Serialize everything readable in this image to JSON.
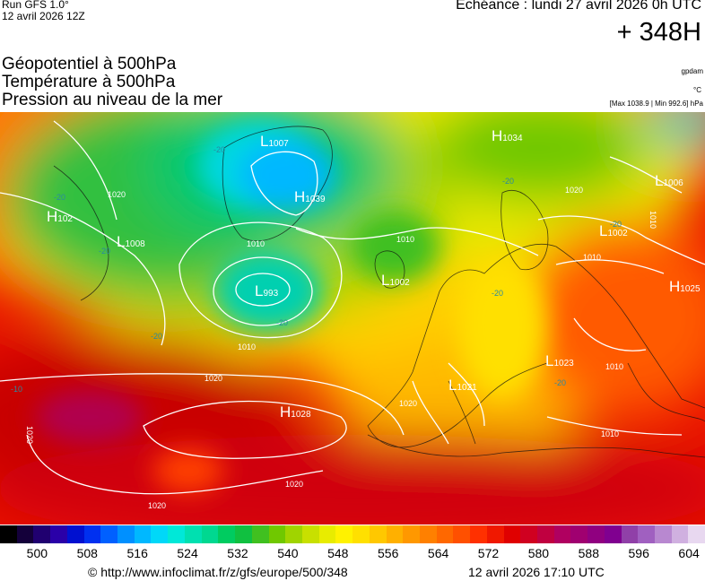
{
  "header": {
    "run": "Run GFS 1.0°",
    "run_date": "12 avril 2026 12Z",
    "echeance": "Echéance : lundi 27 avril 2026 0h UTC",
    "lead": "+ 348H"
  },
  "titles": {
    "geopotential": "Géopotentiel à 500hPa",
    "temperature": "Température à 500hPa",
    "pressure": "Pression au niveau de la mer"
  },
  "units": {
    "geopotential": "gpdam",
    "temperature": "°C",
    "pressure_extremes": "[Max 1038.9 | Min 992.6] hPa"
  },
  "map": {
    "pressure_centers": [
      {
        "type": "H",
        "value": "1039"
      },
      {
        "type": "H",
        "value": "1034"
      },
      {
        "type": "H",
        "value": "102"
      },
      {
        "type": "H",
        "value": "1028"
      },
      {
        "type": "H",
        "value": "1025"
      },
      {
        "type": "L",
        "value": "1007"
      },
      {
        "type": "L",
        "value": "1008"
      },
      {
        "type": "L",
        "value": "993"
      },
      {
        "type": "L",
        "value": "1002"
      },
      {
        "type": "L",
        "value": "1006"
      },
      {
        "type": "L",
        "value": "1002"
      },
      {
        "type": "L",
        "value": "1023"
      },
      {
        "type": "L",
        "value": "1021"
      }
    ],
    "isobar_labels": [
      "1020",
      "1010",
      "1010",
      "1010",
      "1020",
      "1020",
      "1020",
      "1020",
      "1010",
      "1010",
      "1020",
      "1020",
      "1010",
      "1010"
    ],
    "temperature_labels": [
      "-20",
      "-20",
      "-20",
      "-20",
      "-20",
      "-20",
      "-10",
      "-20",
      "-20",
      "-20"
    ]
  },
  "colorbar": {
    "colors": [
      "#000000",
      "#14003a",
      "#200070",
      "#2a00a8",
      "#0010d0",
      "#0030f0",
      "#0060ff",
      "#0090ff",
      "#00b8ff",
      "#00d8f8",
      "#00e8d8",
      "#00e0b0",
      "#00d890",
      "#00cc60",
      "#10c040",
      "#40c020",
      "#70c800",
      "#a0d400",
      "#c8e000",
      "#e8ec00",
      "#fff200",
      "#ffe000",
      "#ffc800",
      "#ffb000",
      "#ff9800",
      "#ff8000",
      "#ff6800",
      "#ff5000",
      "#ff3000",
      "#f01800",
      "#e00000",
      "#d00020",
      "#c00040",
      "#b00060",
      "#a00070",
      "#900080",
      "#800090",
      "#9040a8",
      "#a060c0",
      "#b888d0",
      "#d0b0e0",
      "#e8d8f0"
    ],
    "ticks": [
      "500",
      "508",
      "516",
      "524",
      "532",
      "540",
      "548",
      "556",
      "564",
      "572",
      "580",
      "588",
      "596",
      "604"
    ]
  },
  "footer": {
    "url": "© http://www.infoclimat.fr/z/gfs/europe/500/348",
    "timestamp": "12 avril 2026 17:10 UTC"
  }
}
